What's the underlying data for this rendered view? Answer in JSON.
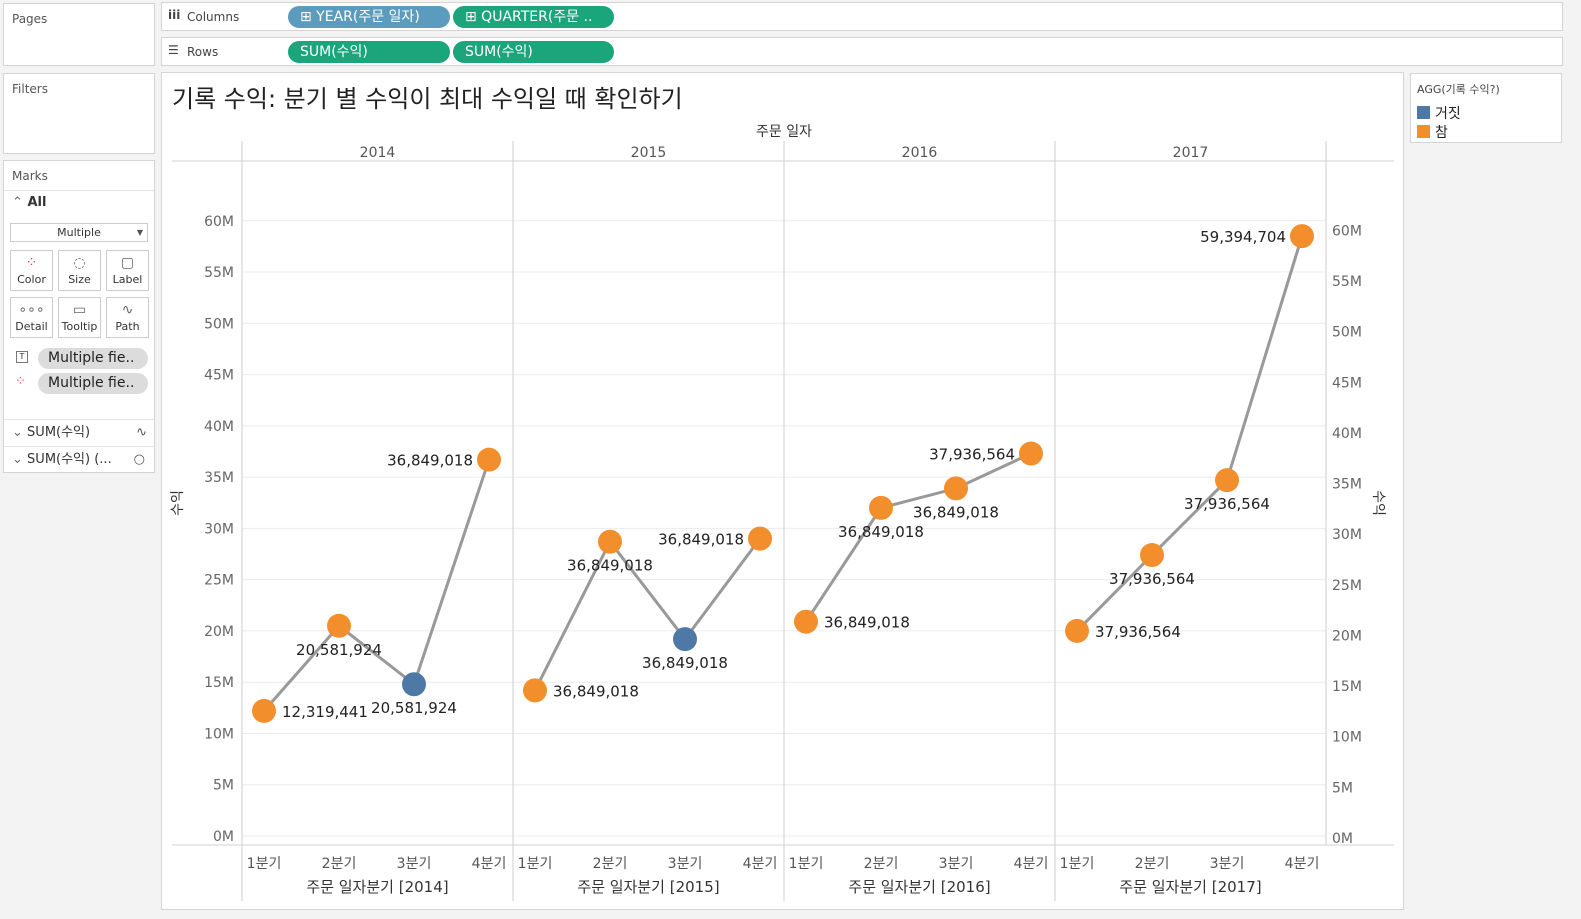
{
  "pages": {
    "title": "Pages"
  },
  "filters": {
    "title": "Filters"
  },
  "columns_shelf": {
    "label": "Columns",
    "pills": [
      "⊞ YEAR(주문 일자)",
      "⊞ QUARTER(주문 .."
    ]
  },
  "rows_shelf": {
    "label": "Rows",
    "pills": [
      "SUM(수익)",
      "SUM(수익)"
    ]
  },
  "marks": {
    "title": "Marks",
    "all_label": "All",
    "mark_type": "Multiple",
    "buttons": [
      "Color",
      "Size",
      "Label",
      "Detail",
      "Tooltip",
      "Path"
    ],
    "fields": [
      "Multiple fie..",
      "Multiple fie.."
    ],
    "measures": [
      "SUM(수익)",
      "SUM(수익) (..."
    ]
  },
  "legend": {
    "title": "AGG(기록 수익?)",
    "items": [
      {
        "label": "거짓",
        "color": "#4e79a7"
      },
      {
        "label": "참",
        "color": "#f28e2b"
      }
    ]
  },
  "chart_data": {
    "type": "line",
    "title": "기록 수익: 분기 별 수익이 최대 수익일 때 확인하기",
    "column_header": "주문 일자",
    "ylabel": "수익",
    "ylim": [
      0,
      63000000
    ],
    "y_ticks": [
      "0M",
      "5M",
      "10M",
      "15M",
      "20M",
      "25M",
      "30M",
      "35M",
      "40M",
      "45M",
      "50M",
      "55M",
      "60M"
    ],
    "grid": true,
    "line_color": "#999999",
    "panels": [
      {
        "year": "2014",
        "xlabel": "주문 일자분기 [2014]",
        "categories": [
          "1분기",
          "2분기",
          "3분기",
          "4분기"
        ],
        "values": [
          12200000,
          20500000,
          14800000,
          36700000
        ],
        "record": [
          true,
          true,
          false,
          true
        ],
        "labels": [
          "12,319,441",
          "20,581,924",
          "20,581,924",
          "36,849,018"
        ]
      },
      {
        "year": "2015",
        "xlabel": "주문 일자분기 [2015]",
        "categories": [
          "1분기",
          "2분기",
          "3분기",
          "4분기"
        ],
        "values": [
          14200000,
          28700000,
          19200000,
          29000000
        ],
        "record": [
          true,
          true,
          false,
          true
        ],
        "labels": [
          "36,849,018",
          "36,849,018",
          "36,849,018",
          "36,849,018"
        ]
      },
      {
        "year": "2016",
        "xlabel": "주문 일자분기 [2016]",
        "categories": [
          "1분기",
          "2분기",
          "3분기",
          "4분기"
        ],
        "values": [
          20900000,
          32000000,
          33900000,
          37300000
        ],
        "record": [
          true,
          true,
          true,
          true
        ],
        "labels": [
          "36,849,018",
          "36,849,018",
          "36,849,018",
          "37,936,564"
        ]
      },
      {
        "year": "2017",
        "xlabel": "주문 일자분기 [2017]",
        "categories": [
          "1분기",
          "2분기",
          "3분기",
          "4분기"
        ],
        "values": [
          20000000,
          27400000,
          34700000,
          58500000
        ],
        "record": [
          true,
          true,
          true,
          true
        ],
        "labels": [
          "37,936,564",
          "37,936,564",
          "37,936,564",
          "59,394,704"
        ]
      }
    ]
  }
}
